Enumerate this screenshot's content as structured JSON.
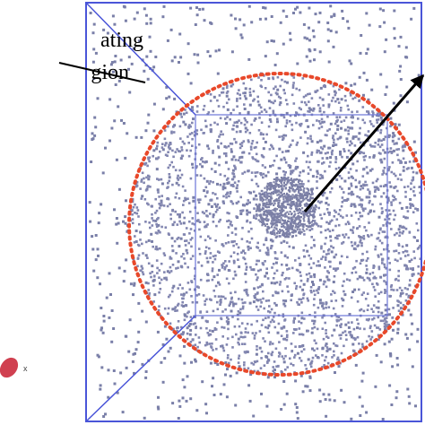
{
  "label": {
    "line1": "ating",
    "line2": "gion"
  },
  "axis_label": "x"
}
